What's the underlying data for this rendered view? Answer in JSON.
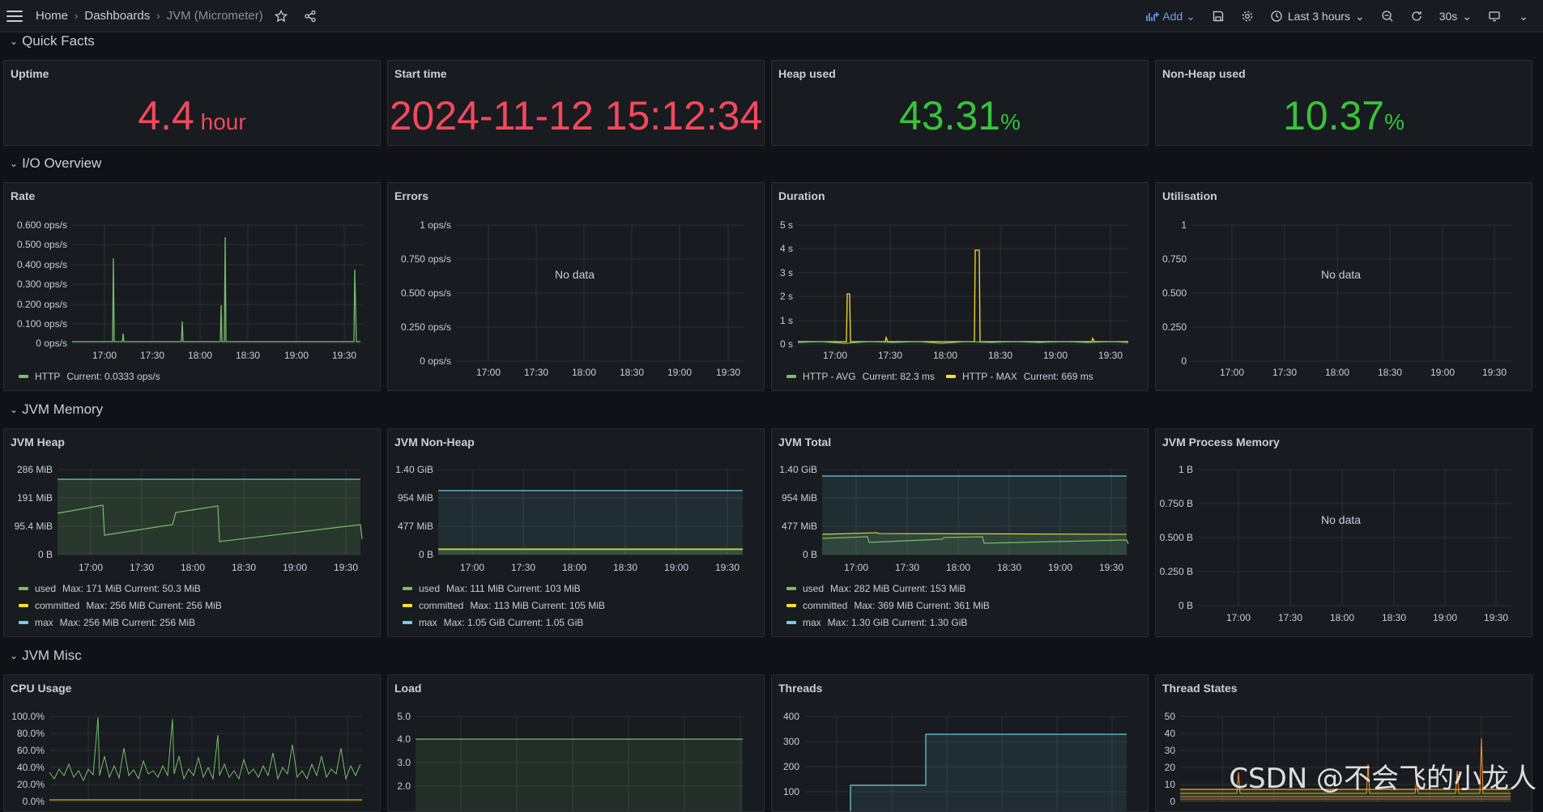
{
  "nav": {
    "breadcrumb_home": "Home",
    "breadcrumb_dashboards": "Dashboards",
    "breadcrumb_current": "JVM (Micrometer)",
    "add_label": "Add",
    "time_range": "Last 3 hours",
    "refresh_interval": "30s"
  },
  "rows": {
    "quick_facts": "Quick Facts",
    "io_overview": "I/O Overview",
    "jvm_memory": "JVM Memory",
    "jvm_misc": "JVM Misc"
  },
  "stats": {
    "uptime": {
      "title": "Uptime",
      "value": "4.4",
      "unit": " hour",
      "color": "#f2495c"
    },
    "start_time": {
      "title": "Start time",
      "value": "2024-11-12 15:12:34",
      "color": "#f2495c"
    },
    "heap_used": {
      "title": "Heap used",
      "value": "43.31",
      "unit": "%",
      "color": "#37c43a"
    },
    "nonheap_used": {
      "title": "Non-Heap used",
      "value": "10.37",
      "unit": "%",
      "color": "#37c43a"
    }
  },
  "no_data_text": "No data",
  "x_ticks": [
    "17:00",
    "17:30",
    "18:00",
    "18:30",
    "19:00",
    "19:30"
  ],
  "panels": {
    "rate": {
      "title": "Rate",
      "yticks": [
        "0.600 ops/s",
        "0.500 ops/s",
        "0.400 ops/s",
        "0.300 ops/s",
        "0.200 ops/s",
        "0.100 ops/s",
        "0 ops/s"
      ],
      "legend": [
        {
          "label": "HTTP",
          "text": "Current: 0.0333 ops/s",
          "color": "#73bf69"
        }
      ]
    },
    "errors": {
      "title": "Errors",
      "yticks": [
        "1 ops/s",
        "0.750 ops/s",
        "0.500 ops/s",
        "0.250 ops/s",
        "0 ops/s"
      ]
    },
    "duration": {
      "title": "Duration",
      "yticks": [
        "5 s",
        "4 s",
        "3 s",
        "2 s",
        "1 s",
        "0 s"
      ],
      "legend": [
        {
          "label": "HTTP - AVG",
          "text": "Current: 82.3 ms",
          "color": "#73bf69"
        },
        {
          "label": "HTTP - MAX",
          "text": "Current: 669 ms",
          "color": "#fade2a"
        }
      ]
    },
    "utilisation": {
      "title": "Utilisation",
      "yticks": [
        "1",
        "0.750",
        "0.500",
        "0.250",
        "0"
      ]
    },
    "jvm_heap": {
      "title": "JVM Heap",
      "yticks": [
        "286 MiB",
        "191 MiB",
        "95.4 MiB",
        "0 B"
      ],
      "legend": [
        {
          "label": "used",
          "text": "Max: 171 MiB  Current: 50.3 MiB",
          "color": "#73bf69"
        },
        {
          "label": "committed",
          "text": "Max: 256 MiB  Current: 256 MiB",
          "color": "#fade2a"
        },
        {
          "label": "max",
          "text": "Max: 256 MiB  Current: 256 MiB",
          "color": "#6ed0e0"
        }
      ]
    },
    "jvm_nonheap": {
      "title": "JVM Non-Heap",
      "yticks": [
        "1.40 GiB",
        "954 MiB",
        "477 MiB",
        "0 B"
      ],
      "legend": [
        {
          "label": "used",
          "text": "Max: 111 MiB  Current: 103 MiB",
          "color": "#73bf69"
        },
        {
          "label": "committed",
          "text": "Max: 113 MiB  Current: 105 MiB",
          "color": "#fade2a"
        },
        {
          "label": "max",
          "text": "Max: 1.05 GiB  Current: 1.05 GiB",
          "color": "#6ed0e0"
        }
      ]
    },
    "jvm_total": {
      "title": "JVM Total",
      "yticks": [
        "1.40 GiB",
        "954 MiB",
        "477 MiB",
        "0 B"
      ],
      "legend": [
        {
          "label": "used",
          "text": "Max: 282 MiB  Current: 153 MiB",
          "color": "#73bf69"
        },
        {
          "label": "committed",
          "text": "Max: 369 MiB  Current: 361 MiB",
          "color": "#fade2a"
        },
        {
          "label": "max",
          "text": "Max: 1.30 GiB  Current: 1.30 GiB",
          "color": "#6ed0e0"
        }
      ]
    },
    "jvm_process": {
      "title": "JVM Process Memory",
      "yticks": [
        "1 B",
        "0.750 B",
        "0.500 B",
        "0.250 B",
        "0 B"
      ]
    },
    "cpu": {
      "title": "CPU Usage",
      "yticks": [
        "100.0%",
        "80.0%",
        "60.0%",
        "40.0%",
        "20.0%",
        "0.0%"
      ]
    },
    "load": {
      "title": "Load",
      "yticks": [
        "5.0",
        "4.0",
        "3.0",
        "2.0"
      ]
    },
    "threads": {
      "title": "Threads",
      "yticks": [
        "400",
        "300",
        "200",
        "100"
      ]
    },
    "thread_states": {
      "title": "Thread States",
      "yticks": [
        "50",
        "40",
        "30",
        "20",
        "10",
        "0"
      ]
    }
  },
  "watermark": "CSDN @不会飞的小龙人"
}
